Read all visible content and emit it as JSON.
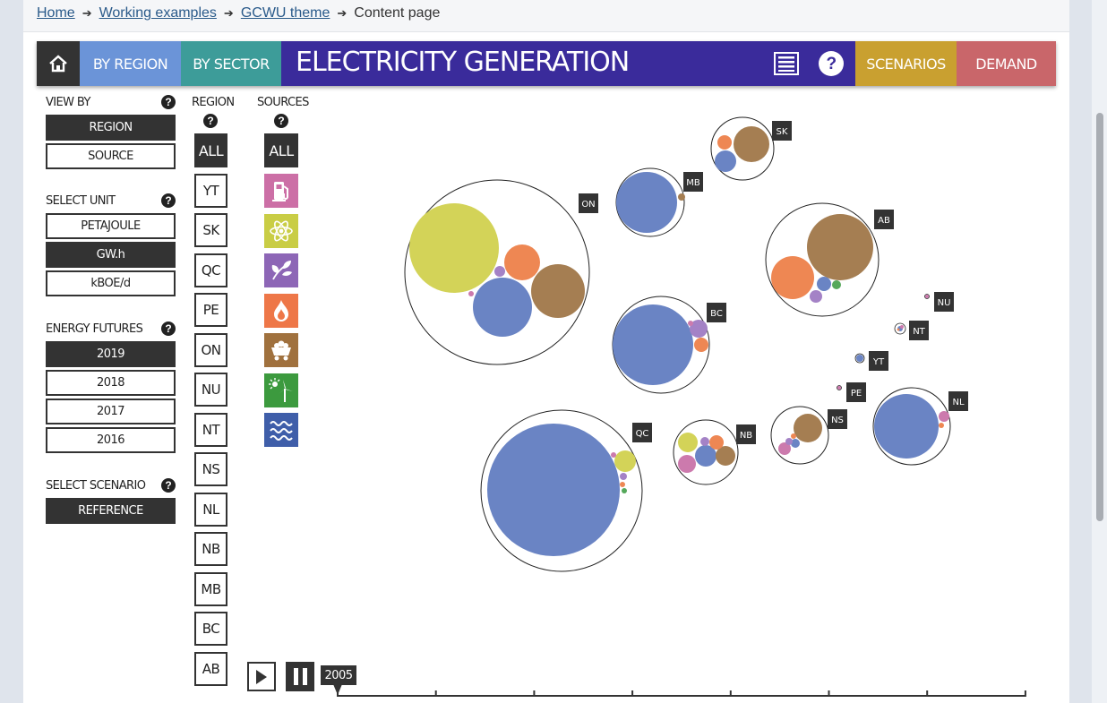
{
  "breadcrumb": {
    "items": [
      "Home",
      "Working examples",
      "GCWU theme"
    ],
    "current": "Content page"
  },
  "nav": {
    "by_region": "BY REGION",
    "by_sector": "BY SECTOR",
    "title": "ELECTRICITY GENERATION",
    "scenarios": "SCENARIOS",
    "demand": "DEMAND"
  },
  "sidebar": {
    "view_by": {
      "label": "VIEW BY",
      "options": [
        "REGION",
        "SOURCE"
      ],
      "selected": "REGION"
    },
    "unit": {
      "label": "SELECT UNIT",
      "options": [
        "PETAJOULE",
        "GW.h",
        "kBOE/d"
      ],
      "selected": "GW.h"
    },
    "futures": {
      "label": "ENERGY FUTURES",
      "options": [
        "2019",
        "2018",
        "2017",
        "2016"
      ],
      "selected": "2019"
    },
    "scenario": {
      "label": "SELECT SCENARIO",
      "options": [
        "REFERENCE"
      ],
      "selected": "REFERENCE"
    }
  },
  "regions": {
    "label": "REGION",
    "items": [
      "ALL",
      "YT",
      "SK",
      "QC",
      "PE",
      "ON",
      "NU",
      "NT",
      "NS",
      "NL",
      "NB",
      "MB",
      "BC",
      "AB"
    ],
    "selected": "ALL"
  },
  "sources": {
    "label": "SOURCES",
    "items": [
      {
        "name": "ALL",
        "icon": ""
      },
      {
        "name": "oil-products",
        "icon": "fuel-pump-icon",
        "color": "#cc6fa6"
      },
      {
        "name": "nuclear",
        "icon": "atom-icon",
        "color": "#c9cd45"
      },
      {
        "name": "biomass",
        "icon": "leaf-icon",
        "color": "#8d66b6"
      },
      {
        "name": "natural-gas",
        "icon": "flame-icon",
        "color": "#ee7748"
      },
      {
        "name": "coal",
        "icon": "mine-cart-icon",
        "color": "#a0713e"
      },
      {
        "name": "wind-solar",
        "icon": "wind-sun-icon",
        "color": "#3c9a3e"
      },
      {
        "name": "hydro",
        "icon": "waves-icon",
        "color": "#3f5ea9"
      }
    ],
    "selected": "ALL"
  },
  "playback": {
    "year": "2005",
    "play_icon": "play-icon",
    "pause_icon": "pause-icon"
  },
  "colors": {
    "hydro": "#6a84c4",
    "nuclear": "#d3d358",
    "gas": "#ee8753",
    "coal": "#a57e52",
    "oil": "#cc7aad",
    "biomass": "#a482c6",
    "wind": "#55a85a"
  },
  "chart_data": {
    "type": "scatter",
    "title": "ELECTRICITY GENERATION",
    "xlabel": "",
    "ylabel": "",
    "regions": [
      {
        "name": "ON",
        "sources": {
          "nuclear": 50,
          "hydro": 33,
          "coal": 30,
          "gas": 20,
          "biomass": 6,
          "oil": 3
        }
      },
      {
        "name": "QC",
        "sources": {
          "hydro": 74,
          "nuclear": 12,
          "biomass": 4,
          "gas": 3,
          "wind": 3,
          "oil": 3
        }
      },
      {
        "name": "AB",
        "sources": {
          "coal": 37,
          "gas": 24,
          "hydro": 8,
          "biomass": 7,
          "wind": 5
        }
      },
      {
        "name": "BC",
        "sources": {
          "hydro": 45,
          "biomass": 10,
          "gas": 8,
          "oil": 3
        }
      },
      {
        "name": "MB",
        "sources": {
          "hydro": 34,
          "coal": 4
        }
      },
      {
        "name": "SK",
        "sources": {
          "coal": 20,
          "hydro": 12,
          "gas": 8
        }
      },
      {
        "name": "NB",
        "sources": {
          "hydro": 12,
          "coal": 11,
          "nuclear": 11,
          "oil": 10,
          "gas": 8,
          "biomass": 5
        }
      },
      {
        "name": "NS",
        "sources": {
          "coal": 16,
          "oil": 7,
          "hydro": 5,
          "biomass": 4,
          "gas": 3
        }
      },
      {
        "name": "NL",
        "sources": {
          "hydro": 36,
          "oil": 6,
          "gas": 3
        }
      },
      {
        "name": "NT",
        "sources": {
          "hydro": 3,
          "oil": 2,
          "gas": 1
        }
      },
      {
        "name": "YT",
        "sources": {
          "hydro": 4
        }
      },
      {
        "name": "PE",
        "sources": {
          "oil": 2
        }
      },
      {
        "name": "NU",
        "sources": {
          "oil": 2
        }
      }
    ]
  }
}
